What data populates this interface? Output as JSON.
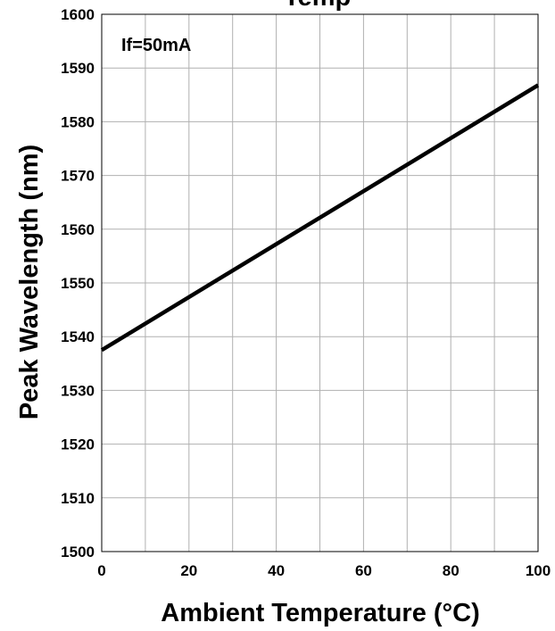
{
  "chart_data": {
    "type": "line",
    "title": "Temp",
    "xlabel": "Ambient Temperature (°C)",
    "ylabel": "Peak Wavelength (nm)",
    "xlim": [
      0,
      100
    ],
    "ylim": [
      1500,
      1600
    ],
    "xticks": [
      0,
      20,
      40,
      60,
      80,
      100
    ],
    "yticks": [
      1500,
      1510,
      1520,
      1530,
      1540,
      1550,
      1560,
      1570,
      1580,
      1590,
      1600
    ],
    "grid": true,
    "annotation": "If=50mA",
    "colors": {
      "line": "#000000",
      "grid": "#b0b0b0",
      "frame": "#000000"
    },
    "series": [
      {
        "x": [
          0,
          100
        ],
        "y": [
          1537.5,
          1586.8
        ]
      }
    ]
  }
}
